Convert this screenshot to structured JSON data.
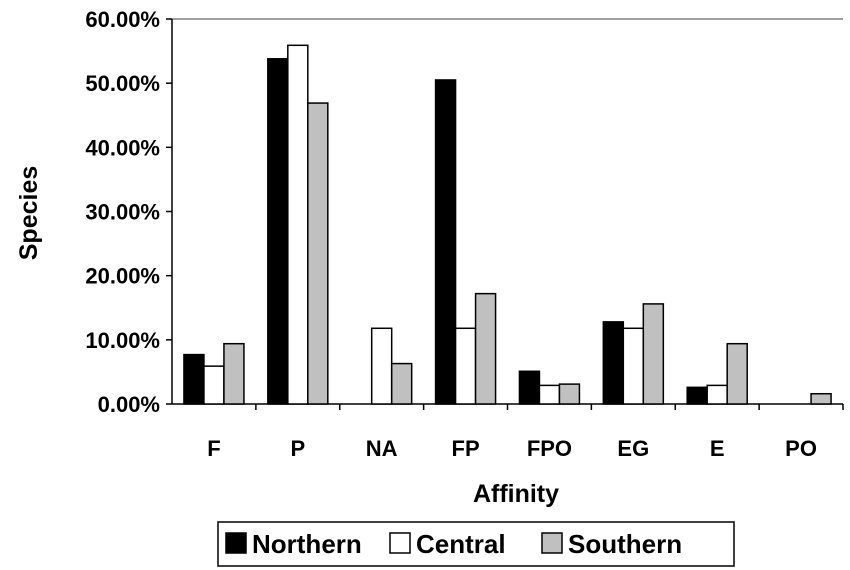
{
  "chart_data": {
    "type": "bar",
    "title": "",
    "xlabel": "Affinity",
    "ylabel": "Species",
    "ylim": [
      0,
      0.6
    ],
    "ytick_values": [
      0,
      0.1,
      0.2,
      0.3,
      0.4,
      0.5,
      0.6
    ],
    "ytick_labels": [
      "0.00%",
      "10.00%",
      "20.00%",
      "30.00%",
      "40.00%",
      "50.00%",
      "60.00%"
    ],
    "categories": [
      "F",
      "P",
      "NA",
      "FP",
      "FPO",
      "EG",
      "E",
      "PO"
    ],
    "series": [
      {
        "name": "Northern",
        "color": "#000000",
        "values": [
          0.077,
          0.538,
          0.0,
          0.505,
          0.051,
          0.128,
          0.026,
          0.0
        ]
      },
      {
        "name": "Central",
        "color": "#ffffff",
        "values": [
          0.059,
          0.559,
          0.118,
          0.118,
          0.029,
          0.118,
          0.029,
          0.0
        ]
      },
      {
        "name": "Southern",
        "color": "#c0c0c0",
        "values": [
          0.094,
          0.469,
          0.063,
          0.172,
          0.031,
          0.156,
          0.094,
          0.016
        ]
      }
    ],
    "grid": false,
    "legend_position": "bottom"
  }
}
